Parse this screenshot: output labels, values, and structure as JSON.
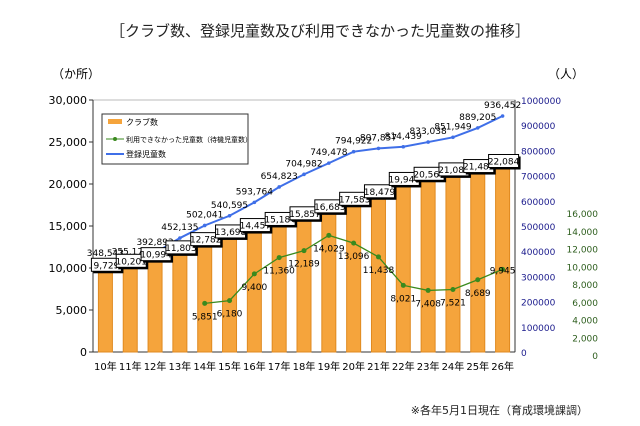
{
  "chart_data": {
    "type": "bar+line",
    "title": "［クラブ数、登録児童数及び利用できなかった児童数の推移］",
    "note": "※各年5月1日現在（育成環境課調）",
    "left_unit": "（か所）",
    "right_unit": "（人）",
    "categories": [
      "10年",
      "11年",
      "12年",
      "13年",
      "14年",
      "15年",
      "16年",
      "17年",
      "18年",
      "19年",
      "20年",
      "21年",
      "22年",
      "23年",
      "24年",
      "25年",
      "26年"
    ],
    "left_axis": {
      "ylim": [
        0,
        30000
      ],
      "ticks": [
        "0",
        "5,000",
        "10,000",
        "15,000",
        "20,000",
        "25,000",
        "30,000"
      ]
    },
    "right_axis_blue": {
      "ylim": [
        0,
        1000000
      ],
      "ticks": [
        "0",
        "100000",
        "200000",
        "300000",
        "400000",
        "500000",
        "600000",
        "700000",
        "800000",
        "900000",
        "1000000"
      ],
      "color": "#1a1a8c"
    },
    "right_axis_green": {
      "ticks": [
        "0",
        "2,000",
        "4,000",
        "6,000",
        "8,000",
        "10,000",
        "12,000",
        "14,000",
        "16,000"
      ],
      "color": "#2e5e1e"
    },
    "legend_position": "top-left",
    "series": [
      {
        "name": "クラブ数",
        "type": "bar",
        "axis": "left",
        "color": "#f5a43c",
        "values": [
          9729,
          10201,
          10994,
          11803,
          12782,
          13698,
          14457,
          15184,
          15857,
          16685,
          17583,
          18479,
          19946,
          20561,
          21085,
          21482,
          22084
        ],
        "labels": [
          "9,729",
          "10,201",
          "10,994",
          "11,803",
          "12,782",
          "13,698",
          "14,457",
          "15,184",
          "15,857",
          "16,685",
          "17,583",
          "18,479",
          "19,946",
          "20,561",
          "21,085",
          "21,482",
          "22,084"
        ]
      },
      {
        "name": "利用できなかった児童数（待機児童数）",
        "type": "line",
        "axis": "green",
        "color": "#3a8a1e",
        "values": [
          null,
          null,
          null,
          null,
          5851,
          6180,
          9400,
          11360,
          12189,
          14029,
          13096,
          11438,
          8021,
          7408,
          7521,
          8689,
          9945
        ],
        "labels": [
          "",
          "",
          "",
          "",
          "5,851",
          "6,180",
          "9,400",
          "11,360",
          "12,189",
          "14,029",
          "13,096",
          "11,438",
          "8,021",
          "7,408",
          "7,521",
          "8,689",
          "9,945"
        ]
      },
      {
        "name": "登録児童数",
        "type": "line",
        "axis": "blue",
        "color": "#3f6fe8",
        "values": [
          348543,
          355176,
          392893,
          452135,
          502041,
          540595,
          593764,
          654823,
          704982,
          749478,
          794922,
          807857,
          814439,
          833038,
          851949,
          889205,
          936452
        ],
        "labels": [
          "348,543",
          "355,176",
          "392,893",
          "452,135",
          "502,041",
          "540,595",
          "593,764",
          "654,823",
          "704,982",
          "749,478",
          "794,922",
          "807,857",
          "814,439",
          "833,038",
          "851,949",
          "889,205",
          "936,452"
        ]
      }
    ]
  }
}
